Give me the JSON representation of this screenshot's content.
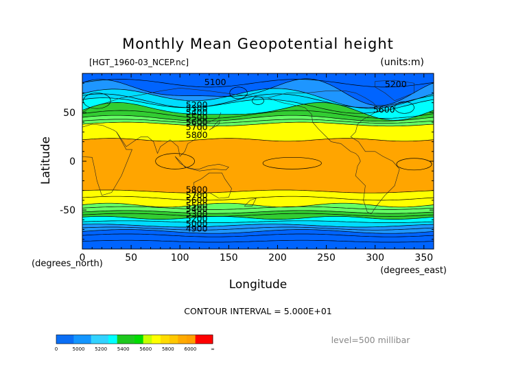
{
  "chart_data": {
    "type": "heatmap",
    "title": "Monthly Mean Geopotential height",
    "file_label": "[HGT_1960-03_NCEP.nc]",
    "units_label": "(units:m)",
    "xlabel": "Longitude",
    "ylabel": "Latitude",
    "x_unit_label": "(degrees_east)",
    "y_unit_label": "(degrees_north)",
    "xlim": [
      0,
      360
    ],
    "ylim": [
      -90,
      90
    ],
    "x_ticks": [
      0,
      50,
      100,
      150,
      200,
      250,
      300,
      350
    ],
    "y_ticks": [
      50,
      0,
      -50
    ],
    "contour_interval_text": "CONTOUR INTERVAL = 5.000E+01",
    "level_text": "level=500 millibar",
    "contour_labels": [
      {
        "text": "5100",
        "lon": 125,
        "lat": 78
      },
      {
        "text": "5200",
        "lon": 310,
        "lat": 76
      },
      {
        "text": "5200",
        "lon": 106,
        "lat": 55
      },
      {
        "text": "5300",
        "lon": 106,
        "lat": 51
      },
      {
        "text": "5400",
        "lon": 106,
        "lat": 47
      },
      {
        "text": "5500",
        "lon": 106,
        "lat": 42
      },
      {
        "text": "5600",
        "lon": 106,
        "lat": 37
      },
      {
        "text": "5700",
        "lon": 106,
        "lat": 32
      },
      {
        "text": "5800",
        "lon": 106,
        "lat": 24
      },
      {
        "text": "5600",
        "lon": 298,
        "lat": 50
      },
      {
        "text": "5800",
        "lon": 106,
        "lat": -32
      },
      {
        "text": "5700",
        "lon": 106,
        "lat": -38
      },
      {
        "text": "5600",
        "lon": 106,
        "lat": -43
      },
      {
        "text": "5500",
        "lon": 106,
        "lat": -48
      },
      {
        "text": "5400",
        "lon": 106,
        "lat": -52
      },
      {
        "text": "5300",
        "lon": 106,
        "lat": -57
      },
      {
        "text": "5200",
        "lon": 106,
        "lat": -62
      },
      {
        "text": "5000",
        "lon": 106,
        "lat": -67
      },
      {
        "text": "4900",
        "lon": 106,
        "lat": -72
      }
    ],
    "colorbar": {
      "colors": [
        "#0a6ef5",
        "#0a6ef5",
        "#1496ff",
        "#1496ff",
        "#32d2ff",
        "#32d2ff",
        "#00ffff",
        "#1ec81e",
        "#1ec81e",
        "#00dd00",
        "#c8ff00",
        "#ffff00",
        "#ffdc00",
        "#ffc800",
        "#ffaa00",
        "#ffa000",
        "#ff0000",
        "#ff0000"
      ],
      "labels": [
        "0",
        "5000",
        "5200",
        "5400",
        "5600",
        "5800",
        "6000",
        "∞"
      ]
    },
    "colors": {
      "polar_deep": "#0064ff",
      "polar": "#1e96ff",
      "sub_polar": "#00dcff",
      "cyan_light": "#00ffff",
      "green": "#32cd32",
      "light_green": "#64ff64",
      "yellow": "#ffff00",
      "tropics": "#ffa500"
    }
  }
}
